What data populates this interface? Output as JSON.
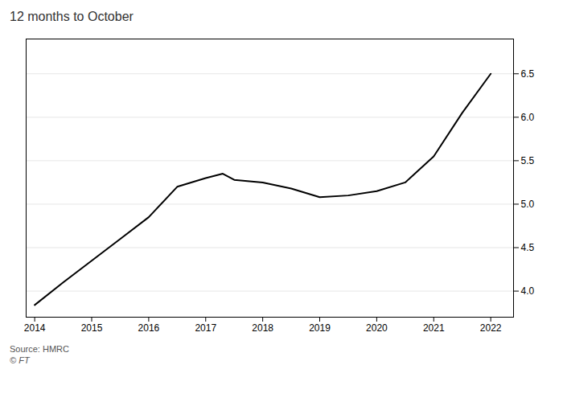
{
  "chart_data": {
    "type": "line",
    "title": "12 months to October",
    "annotations": [
      "Source: HMRC",
      "© FT"
    ],
    "x": [
      2014,
      2014.5,
      2015,
      2015.5,
      2016,
      2016.5,
      2017,
      2017.3,
      2017.5,
      2018,
      2018.5,
      2019,
      2019.5,
      2020,
      2020.5,
      2021,
      2021.5,
      2022
    ],
    "values": [
      3.84,
      4.1,
      4.35,
      4.6,
      4.85,
      5.2,
      5.3,
      5.35,
      5.28,
      5.25,
      5.18,
      5.08,
      5.1,
      5.15,
      5.25,
      5.55,
      6.05,
      6.5
    ],
    "xlim": [
      2013.85,
      2022.4
    ],
    "xticks": [
      2014,
      2015,
      2016,
      2017,
      2018,
      2019,
      2020,
      2021,
      2022
    ],
    "ylim": [
      3.7,
      6.9
    ],
    "yticks": [
      {
        "value": 4.0,
        "label": "4.0"
      },
      4.5,
      {
        "value": 5.0,
        "label": "5.0"
      },
      5.5,
      {
        "value": 6.0,
        "label": "6.0"
      },
      6.5
    ],
    "grid": true
  }
}
